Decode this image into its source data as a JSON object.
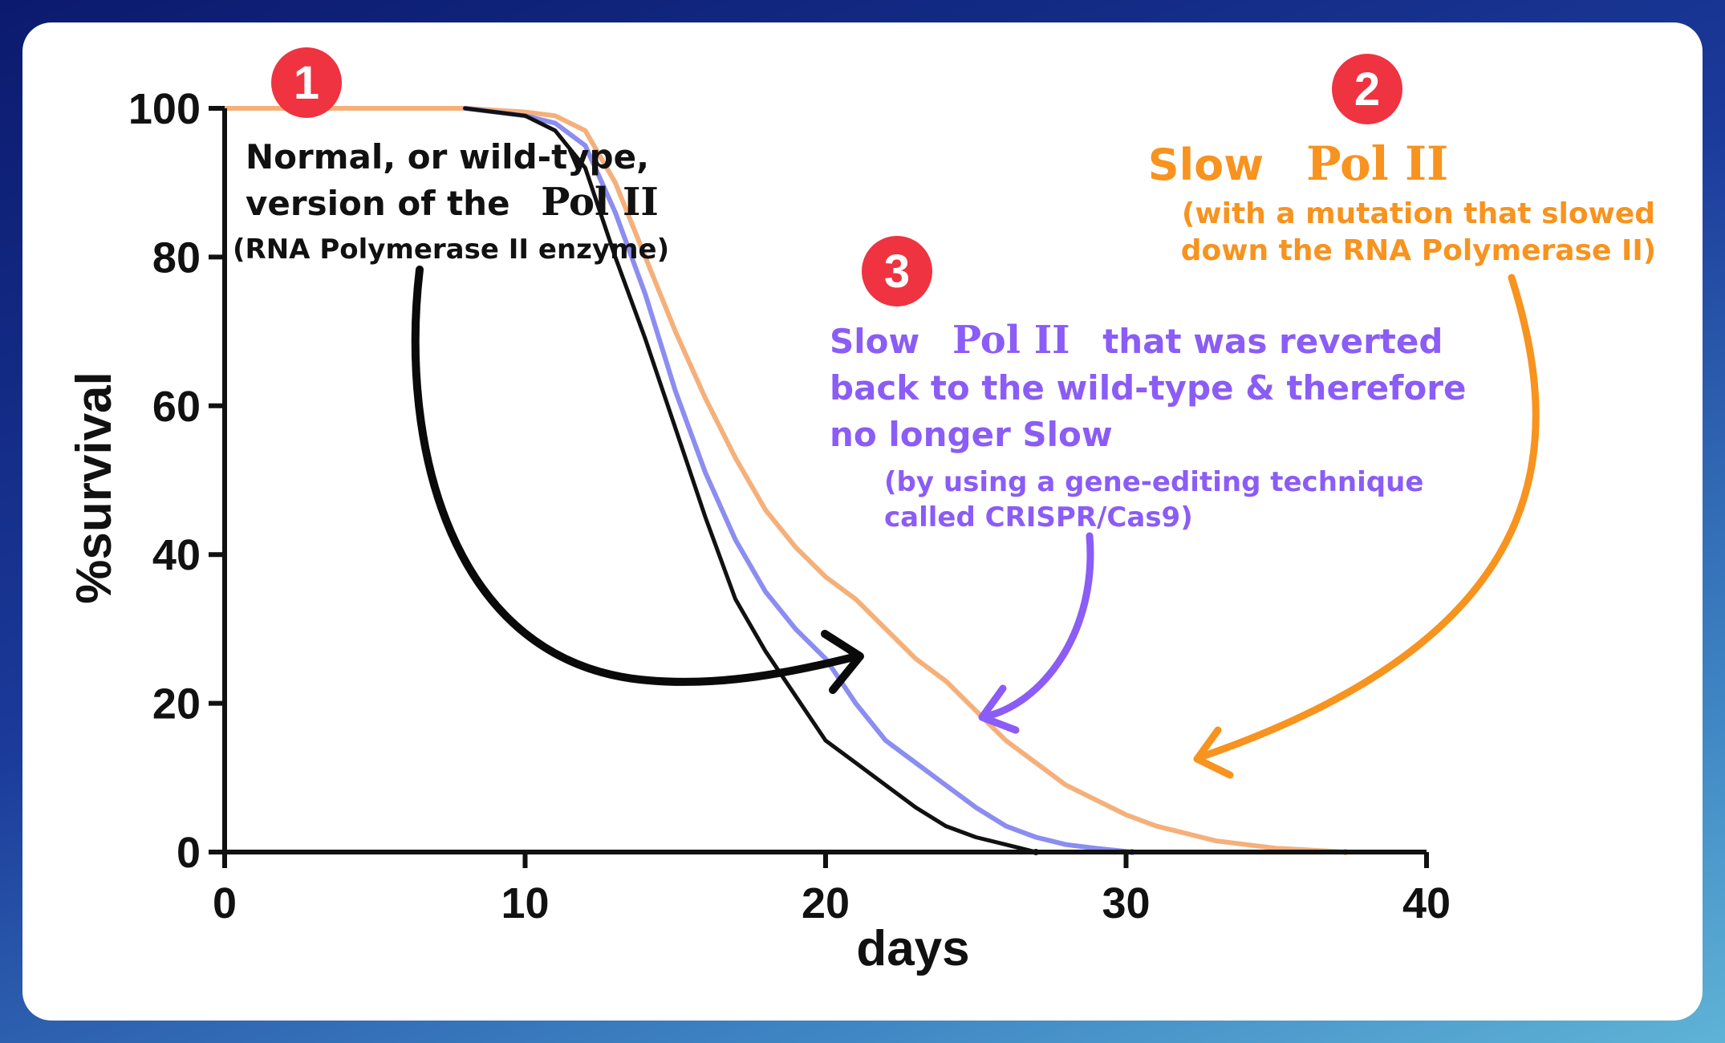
{
  "chart_data": {
    "type": "line",
    "xlabel": "days",
    "ylabel": "%survival",
    "xlim": [
      0,
      40
    ],
    "ylim": [
      0,
      100
    ],
    "x_ticks": [
      0,
      10,
      20,
      30,
      40
    ],
    "y_ticks": [
      0,
      20,
      40,
      60,
      80,
      100
    ],
    "series": [
      {
        "name": "Slow Pol II",
        "color": "#f5b07a",
        "x": [
          0,
          8,
          10,
          11,
          12,
          13,
          14,
          15,
          16,
          17,
          18,
          19,
          20,
          21,
          22,
          23,
          24,
          25,
          26,
          27,
          28,
          29,
          30,
          31,
          32,
          33,
          34,
          35,
          36,
          37.3
        ],
        "y": [
          100,
          100,
          99.5,
          99,
          97,
          90,
          80,
          70,
          61,
          53,
          46,
          41,
          37,
          34,
          30,
          26,
          23,
          19,
          15,
          12,
          9,
          7,
          5,
          3.5,
          2.5,
          1.5,
          1,
          0.5,
          0.3,
          0
        ]
      },
      {
        "name": "Slow Pol II reverted to wild-type",
        "color": "#8b8df0",
        "x": [
          8,
          10,
          11,
          12,
          13,
          14,
          15,
          16,
          17,
          18,
          19,
          20,
          21,
          22,
          23,
          24,
          25,
          26,
          27,
          28,
          29,
          30.2
        ],
        "y": [
          100,
          99,
          98,
          95,
          86,
          75,
          62,
          51,
          42,
          35,
          30,
          26,
          20,
          15,
          12,
          9,
          6,
          3.5,
          2,
          1,
          0.5,
          0
        ]
      },
      {
        "name": "Normal, or wild-type, version of the Pol II",
        "color": "#111111",
        "x": [
          8,
          10,
          11,
          12,
          13,
          14,
          15,
          16,
          17,
          18,
          19,
          20,
          21,
          22,
          23,
          24,
          25,
          26,
          27
        ],
        "y": [
          100,
          99,
          97,
          92,
          80,
          69,
          57,
          45,
          34,
          27,
          21,
          15,
          12,
          9,
          6,
          3.5,
          2,
          1,
          0
        ]
      }
    ]
  },
  "annotations": {
    "a1": {
      "badge": "1",
      "line1": "Normal, or wild-type,",
      "line2_pre": "version of the",
      "line2_serif": "Pol II",
      "line3": "(RNA Polymerase II enzyme)"
    },
    "a2": {
      "badge": "2",
      "title_pre": "Slow",
      "title_serif": "Pol II",
      "sub1": "(with a mutation that slowed",
      "sub2": "down the RNA Polymerase II)"
    },
    "a3": {
      "badge": "3",
      "line1_pre": "Slow",
      "line1_serif": "Pol II",
      "line1_post": "that was reverted",
      "line2": "back to the wild-type & therefore",
      "line3": "no longer Slow",
      "sub1": "(by using a gene-editing technique",
      "sub2": "called CRISPR/Cas9)"
    }
  },
  "colors": {
    "badge": "#ef3340",
    "orange_text": "#f7931e",
    "purple_text": "#8b5cf6",
    "arrow_black": "#0a0a0a",
    "arrow_purple": "#8b5cf6",
    "arrow_orange": "#f7931e"
  }
}
